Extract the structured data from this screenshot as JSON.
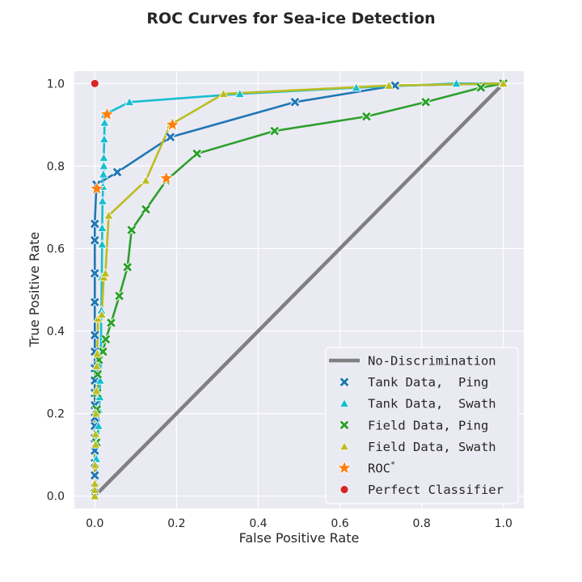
{
  "chart_data": {
    "type": "line",
    "title": "ROC Curves for Sea-ice Detection",
    "xlabel": "False Positive Rate",
    "ylabel": "True Positive Rate",
    "xlim": [
      -0.05,
      1.05
    ],
    "ylim": [
      -0.03,
      1.03
    ],
    "xticks": [
      0.0,
      0.2,
      0.4,
      0.6,
      0.8,
      1.0
    ],
    "yticks": [
      0.0,
      0.2,
      0.4,
      0.6,
      0.8,
      1.0
    ],
    "xtick_labels": [
      "0.0",
      "0.2",
      "0.4",
      "0.6",
      "0.8",
      "1.0"
    ],
    "ytick_labels": [
      "0.0",
      "0.2",
      "0.4",
      "0.6",
      "0.8",
      "1.0"
    ],
    "grid": true,
    "legend_position": "bottom-right",
    "background_color": "#eaeaf2",
    "no_discrimination": {
      "name": "No-Discrimination",
      "color": "#808083",
      "x": [
        0,
        1
      ],
      "y": [
        0,
        1
      ]
    },
    "series": [
      {
        "name": "Tank Data,  Ping",
        "marker": "x",
        "color": "#1f77b4",
        "x": [
          0,
          0,
          0,
          0,
          0,
          0,
          0,
          0,
          0,
          0,
          0,
          0,
          0,
          0,
          0,
          0,
          0,
          0,
          0.004,
          0.055,
          0.185,
          0.49,
          0.735,
          1.0
        ],
        "y": [
          0.0,
          0.02,
          0.05,
          0.08,
          0.11,
          0.14,
          0.17,
          0.19,
          0.22,
          0.25,
          0.28,
          0.31,
          0.35,
          0.39,
          0.47,
          0.54,
          0.62,
          0.66,
          0.755,
          0.785,
          0.87,
          0.955,
          0.995,
          1.0
        ]
      },
      {
        "name": "Tank Data,  Swath",
        "marker": "triangle",
        "color": "#17becf",
        "x": [
          0,
          0.004,
          0.007,
          0.009,
          0.01,
          0.012,
          0.013,
          0.015,
          0.016,
          0.017,
          0.018,
          0.018,
          0.019,
          0.02,
          0.021,
          0.022,
          0.022,
          0.023,
          0.024,
          0.025,
          0.085,
          0.355,
          0.64,
          0.885,
          1.0
        ],
        "y": [
          0.0,
          0.09,
          0.13,
          0.17,
          0.21,
          0.24,
          0.28,
          0.35,
          0.45,
          0.53,
          0.61,
          0.65,
          0.715,
          0.75,
          0.78,
          0.8,
          0.82,
          0.865,
          0.905,
          0.925,
          0.955,
          0.975,
          0.99,
          1.0,
          1.0
        ]
      },
      {
        "name": "Field Data, Ping",
        "marker": "x",
        "color": "#2ca02c",
        "x": [
          0.004,
          0.005,
          0.006,
          0.007,
          0.01,
          0.02,
          0.027,
          0.04,
          0.06,
          0.08,
          0.09,
          0.125,
          0.175,
          0.25,
          0.44,
          0.665,
          0.81,
          0.945,
          1.0
        ],
        "y": [
          0.13,
          0.21,
          0.25,
          0.295,
          0.33,
          0.35,
          0.38,
          0.42,
          0.485,
          0.555,
          0.645,
          0.695,
          0.765,
          0.83,
          0.885,
          0.92,
          0.955,
          0.99,
          1.0
        ]
      },
      {
        "name": "Field Data, Swath",
        "marker": "triangle",
        "color": "#bcbd22",
        "x": [
          0,
          0,
          0,
          0.001,
          0.002,
          0.002,
          0.003,
          0.004,
          0.005,
          0.006,
          0.008,
          0.017,
          0.022,
          0.026,
          0.034,
          0.125,
          0.185,
          0.315,
          0.72,
          1.0
        ],
        "y": [
          0.0,
          0.015,
          0.03,
          0.075,
          0.125,
          0.15,
          0.2,
          0.255,
          0.315,
          0.345,
          0.43,
          0.44,
          0.53,
          0.54,
          0.68,
          0.765,
          0.9,
          0.975,
          0.995,
          1.0
        ]
      }
    ],
    "roc_star": {
      "name": "ROC",
      "name_superscript": "*",
      "color": "#ff7f0e",
      "x": [
        0.005,
        0.03,
        0.175,
        0.19
      ],
      "y": [
        0.745,
        0.925,
        0.77,
        0.9
      ]
    },
    "perfect_classifier": {
      "name": "Perfect Classifier",
      "color": "#d62728",
      "x": [
        0
      ],
      "y": [
        1
      ]
    }
  }
}
